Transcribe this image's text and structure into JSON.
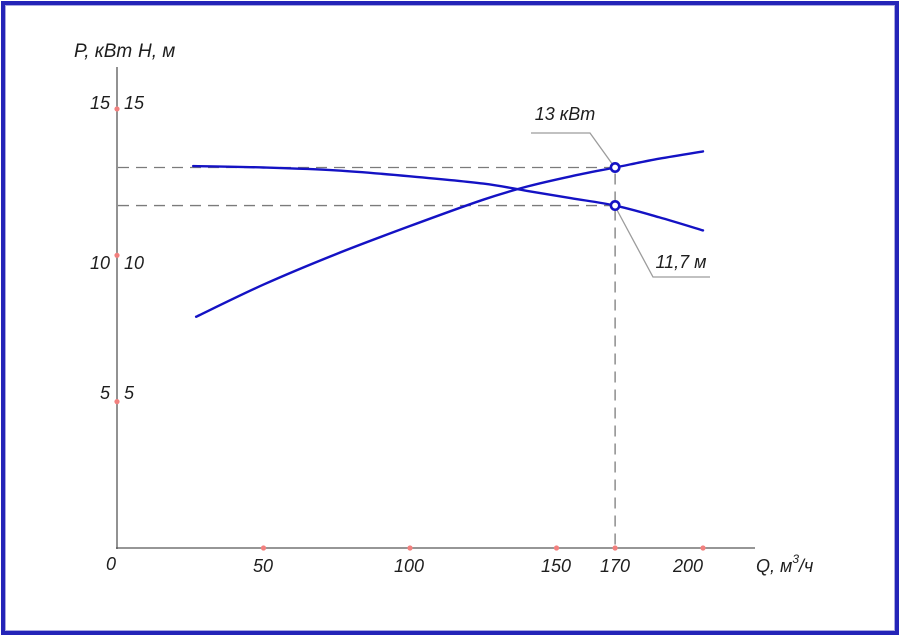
{
  "window": {
    "background": "#ffffff",
    "border_color": "#2424b8"
  },
  "colors": {
    "curve": "#1412c4",
    "axis": "#575757",
    "dashed_guide": "#7b7b7b",
    "leader": "#9c9c9c",
    "tick_dot": "#f2807e",
    "text": "#1e1e1e",
    "marker_fill": "#ffffff"
  },
  "chart_data": {
    "type": "line",
    "title": "",
    "grid": false,
    "legend": "none",
    "x_axis": {
      "label": "Q, м³/ч",
      "label_parts": {
        "prefix": "Q, м",
        "sup": "3",
        "suffix": "/ч"
      },
      "range": [
        0,
        218
      ],
      "ticks": [
        {
          "value": 0,
          "label": "0"
        },
        {
          "value": 50,
          "label": "50"
        },
        {
          "value": 100,
          "label": "100"
        },
        {
          "value": 150,
          "label": "150"
        },
        {
          "value": 170,
          "label": "170"
        },
        {
          "value": 200,
          "label": "200"
        }
      ]
    },
    "y_axis": {
      "titles": [
        {
          "label": "P, кВт"
        },
        {
          "label": "H, м"
        }
      ],
      "range": [
        0,
        16.4
      ],
      "ticks": [
        {
          "value": 15,
          "label": "15"
        },
        {
          "value": 10,
          "label": "10"
        },
        {
          "value": 5,
          "label": "5"
        }
      ]
    },
    "series": [
      {
        "name": "P, кВт",
        "points": [
          [
            27,
            7.9
          ],
          [
            50,
            9.0
          ],
          [
            75,
            10.05
          ],
          [
            100,
            11.0
          ],
          [
            125,
            11.9
          ],
          [
            140,
            12.35
          ],
          [
            155,
            12.7
          ],
          [
            170,
            13.0
          ],
          [
            185,
            13.3
          ],
          [
            200,
            13.55
          ]
        ]
      },
      {
        "name": "H, м",
        "points": [
          [
            26,
            13.05
          ],
          [
            50,
            13.0
          ],
          [
            75,
            12.9
          ],
          [
            100,
            12.7
          ],
          [
            125,
            12.45
          ],
          [
            140,
            12.2
          ],
          [
            155,
            11.95
          ],
          [
            170,
            11.7
          ],
          [
            185,
            11.3
          ],
          [
            200,
            10.85
          ]
        ]
      }
    ],
    "operating_point": {
      "q": 170,
      "p_value": 13,
      "h_value": 11.7
    },
    "annotations": [
      {
        "text": "13 кВт",
        "q": 170,
        "value": 13,
        "series": "P, кВт"
      },
      {
        "text": "11,7 м",
        "q": 170,
        "value": 11.7,
        "series": "H, м"
      }
    ],
    "guides": {
      "horizontal_values": [
        13,
        11.7
      ],
      "vertical_q": 170
    }
  }
}
